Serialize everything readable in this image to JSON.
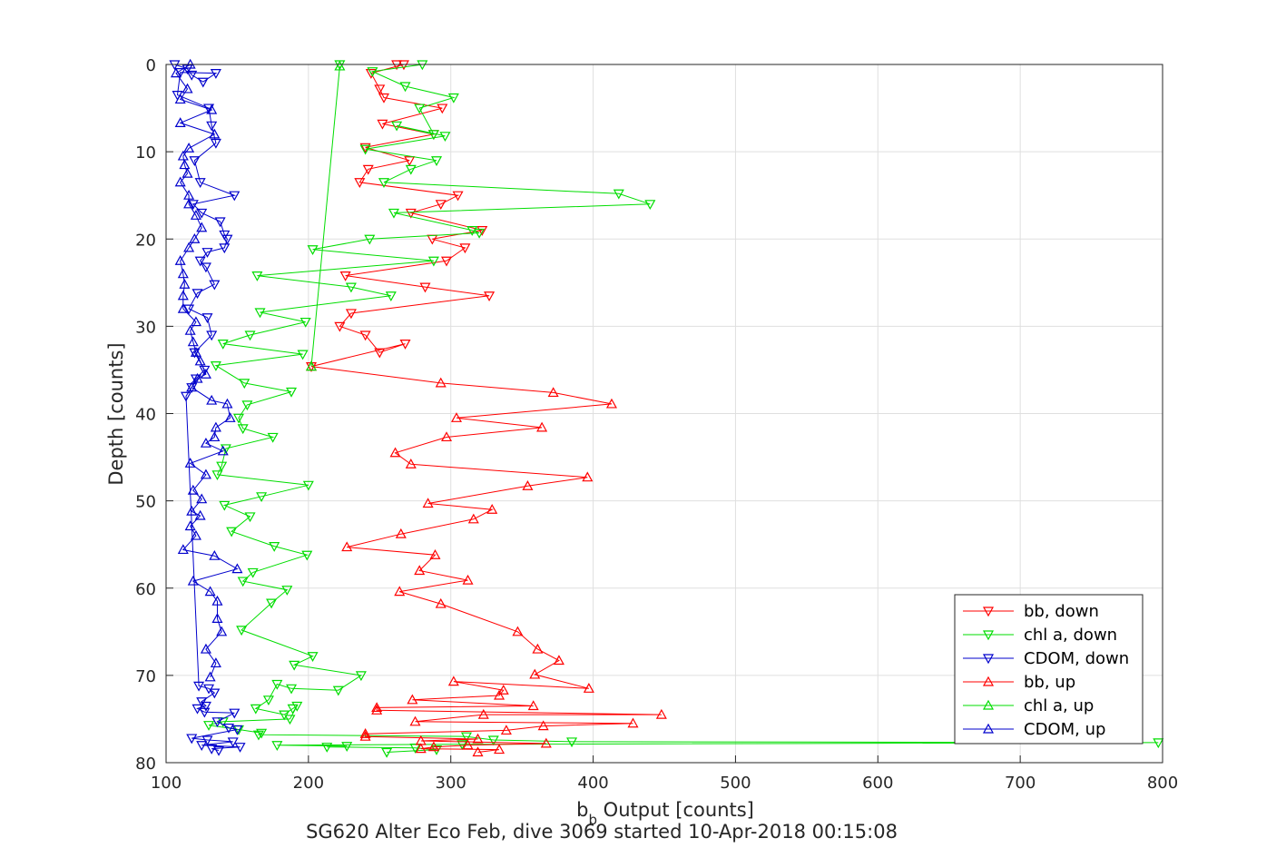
{
  "chart_data": {
    "type": "line",
    "xlabel_main": "b",
    "xlabel_sub": "b",
    "xlabel_rest": " Output [counts]",
    "ylabel": "Depth [counts]",
    "footer": "SG620 Alter Eco Feb, dive 3069 started 10-Apr-2018 00:15:08",
    "xlim": [
      100,
      800
    ],
    "ylim": [
      0,
      80
    ],
    "y_reversed": true,
    "grid": true,
    "legend_position": "bottom-right",
    "xticks": [
      "100",
      "200",
      "300",
      "400",
      "500",
      "600",
      "700",
      "800"
    ],
    "yticks": [
      "0",
      "10",
      "20",
      "30",
      "40",
      "50",
      "60",
      "70",
      "80"
    ],
    "series": [
      {
        "name": "bb, down",
        "color": "#ff0000",
        "marker": "triangle-down",
        "points": [
          [
            262,
            0
          ],
          [
            267,
            0
          ],
          [
            244,
            1
          ],
          [
            250,
            2.8
          ],
          [
            253,
            3.8
          ],
          [
            294,
            5
          ],
          [
            252,
            6.8
          ],
          [
            288,
            8
          ],
          [
            240,
            9.5
          ],
          [
            271,
            11
          ],
          [
            242,
            12
          ],
          [
            236,
            13.5
          ],
          [
            305,
            15
          ],
          [
            293,
            16
          ],
          [
            272,
            17
          ],
          [
            322,
            19
          ],
          [
            287,
            20
          ],
          [
            310,
            21
          ],
          [
            297,
            22.5
          ],
          [
            226,
            24.2
          ],
          [
            282,
            25.5
          ],
          [
            327,
            26.5
          ],
          [
            230,
            28.5
          ],
          [
            222,
            30
          ],
          [
            240,
            31
          ],
          [
            250,
            33
          ],
          [
            268,
            32
          ],
          [
            202,
            34.6
          ]
        ]
      },
      {
        "name": "chl a, down",
        "color": "#00dd00",
        "marker": "triangle-down",
        "points": [
          [
            222,
            0
          ],
          [
            280,
            0
          ],
          [
            245,
            0.8
          ],
          [
            268,
            2.5
          ],
          [
            302,
            3.8
          ],
          [
            278,
            5
          ],
          [
            288,
            8
          ],
          [
            262,
            7
          ],
          [
            296,
            8.2
          ],
          [
            240,
            9.7
          ],
          [
            290,
            11
          ],
          [
            272,
            12
          ],
          [
            253,
            13.5
          ],
          [
            418,
            14.8
          ],
          [
            440,
            16
          ],
          [
            260,
            17
          ],
          [
            315,
            19
          ],
          [
            320,
            19.3
          ],
          [
            243,
            20
          ],
          [
            203,
            21.2
          ],
          [
            288,
            22.5
          ],
          [
            164,
            24.2
          ],
          [
            230,
            25.5
          ],
          [
            258,
            26.5
          ],
          [
            166,
            28.4
          ],
          [
            198,
            29.5
          ],
          [
            159,
            31
          ],
          [
            140,
            32
          ],
          [
            196,
            33.2
          ],
          [
            135,
            34.5
          ],
          [
            155,
            36.5
          ],
          [
            188,
            37.5
          ],
          [
            157,
            39
          ],
          [
            151,
            40.5
          ],
          [
            154,
            41.7
          ],
          [
            175,
            42.7
          ],
          [
            142,
            44
          ],
          [
            139,
            46
          ],
          [
            136,
            47
          ],
          [
            200,
            48.2
          ],
          [
            167,
            49.5
          ],
          [
            141,
            50.5
          ],
          [
            159,
            51.8
          ],
          [
            146,
            53.5
          ],
          [
            176,
            55.2
          ],
          [
            199,
            56.2
          ],
          [
            161,
            58.2
          ],
          [
            154,
            59.2
          ],
          [
            185,
            60.2
          ],
          [
            174,
            61.7
          ],
          [
            153,
            64.8
          ],
          [
            203,
            67.8
          ],
          [
            190,
            68.8
          ],
          [
            237,
            70
          ],
          [
            221,
            71.7
          ],
          [
            188,
            71.5
          ],
          [
            178,
            71
          ],
          [
            172,
            72.8
          ],
          [
            163,
            73.8
          ],
          [
            183,
            74.5
          ],
          [
            189,
            73.8
          ],
          [
            192,
            73.5
          ],
          [
            187,
            75
          ],
          [
            140,
            75.3
          ],
          [
            130,
            75.7
          ],
          [
            151,
            76.2
          ],
          [
            167,
            76.6
          ],
          [
            165,
            76.8
          ],
          [
            311,
            77
          ],
          [
            330,
            77.4
          ],
          [
            385,
            77.6
          ],
          [
            797,
            77.7
          ],
          [
            308,
            77.9
          ],
          [
            178,
            78
          ],
          [
            227,
            78.1
          ],
          [
            213,
            78.2
          ],
          [
            275,
            78.3
          ],
          [
            290,
            78.5
          ],
          [
            255,
            78.8
          ]
        ]
      },
      {
        "name": "CDOM, down",
        "color": "#0000cc",
        "marker": "triangle-down",
        "points": [
          [
            106,
            0
          ],
          [
            115,
            0.5
          ],
          [
            118,
            1.2
          ],
          [
            126,
            2
          ],
          [
            135,
            1
          ],
          [
            110,
            0.9
          ],
          [
            108,
            3.5
          ],
          [
            130,
            5
          ],
          [
            132,
            7
          ],
          [
            135,
            9
          ],
          [
            120,
            11
          ],
          [
            124,
            13.5
          ],
          [
            148,
            15
          ],
          [
            119,
            16
          ],
          [
            125,
            17
          ],
          [
            138,
            18
          ],
          [
            141,
            19.5
          ],
          [
            143,
            20
          ],
          [
            141,
            21
          ],
          [
            129,
            21.5
          ],
          [
            124,
            22.5
          ],
          [
            128,
            23.2
          ],
          [
            134,
            25.2
          ],
          [
            122,
            26.2
          ],
          [
            116,
            28
          ],
          [
            129,
            29
          ],
          [
            132,
            31
          ],
          [
            120,
            33
          ],
          [
            127,
            35
          ],
          [
            121,
            36
          ],
          [
            118,
            37
          ],
          [
            114,
            38
          ],
          [
            123,
            71.2
          ],
          [
            130,
            71.5
          ],
          [
            134,
            72
          ],
          [
            125,
            73
          ],
          [
            128,
            73.5
          ],
          [
            122,
            73.8
          ],
          [
            127,
            74.2
          ],
          [
            148,
            74.3
          ],
          [
            136,
            75.3
          ],
          [
            144,
            76
          ],
          [
            150,
            76.2
          ],
          [
            118,
            77.2
          ],
          [
            129,
            77.4
          ],
          [
            147,
            77.6
          ],
          [
            125,
            78
          ],
          [
            152,
            78.2
          ],
          [
            132,
            78.4
          ],
          [
            137,
            78.6
          ]
        ]
      },
      {
        "name": "bb, up",
        "color": "#ff0000",
        "marker": "triangle-up",
        "points": [
          [
            202,
            34.6
          ],
          [
            293,
            36.5
          ],
          [
            372,
            37.6
          ],
          [
            413,
            38.9
          ],
          [
            304,
            40.5
          ],
          [
            364,
            41.6
          ],
          [
            297,
            42.7
          ],
          [
            261,
            44.5
          ],
          [
            272,
            45.8
          ],
          [
            396,
            47.3
          ],
          [
            354,
            48.3
          ],
          [
            284,
            50.3
          ],
          [
            329,
            51
          ],
          [
            316,
            52.1
          ],
          [
            265,
            53.8
          ],
          [
            227,
            55.3
          ],
          [
            289,
            56.2
          ],
          [
            278,
            58
          ],
          [
            312,
            59.1
          ],
          [
            264,
            60.4
          ],
          [
            293,
            61.8
          ],
          [
            347,
            65
          ],
          [
            361,
            67
          ],
          [
            376,
            68.3
          ],
          [
            359,
            69.9
          ],
          [
            397,
            71.5
          ],
          [
            302,
            70.7
          ],
          [
            337,
            71.7
          ],
          [
            334,
            72.3
          ],
          [
            273,
            72.8
          ],
          [
            358,
            73.5
          ],
          [
            248,
            73.7
          ],
          [
            248,
            74
          ],
          [
            448,
            74.5
          ],
          [
            323,
            74.5
          ],
          [
            275,
            75.3
          ],
          [
            428,
            75.5
          ],
          [
            365,
            75.8
          ],
          [
            339,
            76.3
          ],
          [
            240,
            76.7
          ],
          [
            240,
            77
          ],
          [
            319,
            77.3
          ],
          [
            279,
            77.5
          ],
          [
            367,
            77.8
          ],
          [
            312,
            78
          ],
          [
            288,
            78.2
          ],
          [
            279,
            78.4
          ],
          [
            334,
            78.5
          ],
          [
            319,
            78.8
          ]
        ]
      },
      {
        "name": "chl a, up",
        "color": "#00dd00",
        "marker": "triangle-up",
        "points": [
          [
            202,
            34.6
          ],
          [
            222,
            0.2
          ]
        ]
      },
      {
        "name": "CDOM, up",
        "color": "#0000cc",
        "marker": "triangle-up",
        "points": [
          [
            117,
            0
          ],
          [
            107,
            1
          ],
          [
            115,
            2.8
          ],
          [
            110,
            4
          ],
          [
            132,
            5.2
          ],
          [
            110,
            6.7
          ],
          [
            134,
            8
          ],
          [
            116,
            9.6
          ],
          [
            112,
            10.5
          ],
          [
            113,
            11.5
          ],
          [
            115,
            12.5
          ],
          [
            110,
            13.5
          ],
          [
            116,
            15
          ],
          [
            116,
            16
          ],
          [
            121,
            17.3
          ],
          [
            125,
            18.7
          ],
          [
            120,
            20
          ],
          [
            116,
            21
          ],
          [
            110,
            22.5
          ],
          [
            112,
            24
          ],
          [
            113,
            25.2
          ],
          [
            112,
            26.5
          ],
          [
            112,
            28
          ],
          [
            121,
            29.5
          ],
          [
            117,
            30.5
          ],
          [
            119,
            31.8
          ],
          [
            121,
            33
          ],
          [
            124,
            34
          ],
          [
            128,
            35.5
          ],
          [
            122,
            36
          ],
          [
            118,
            37
          ],
          [
            132,
            38.5
          ],
          [
            143,
            38.9
          ],
          [
            145,
            40.5
          ],
          [
            135,
            41.6
          ],
          [
            134,
            42.7
          ],
          [
            128,
            43.4
          ],
          [
            140,
            44.3
          ],
          [
            117,
            45.7
          ],
          [
            128,
            47
          ],
          [
            119,
            48.8
          ],
          [
            125,
            49.8
          ],
          [
            118,
            51.2
          ],
          [
            124,
            51.7
          ],
          [
            117,
            52.9
          ],
          [
            121,
            54
          ],
          [
            112,
            55.6
          ],
          [
            134,
            56.3
          ],
          [
            150,
            57.8
          ],
          [
            119,
            59.2
          ],
          [
            131,
            60.4
          ],
          [
            136,
            61.5
          ],
          [
            136,
            63.5
          ],
          [
            139,
            65
          ],
          [
            128,
            67
          ],
          [
            135,
            68.6
          ],
          [
            131,
            70.2
          ]
        ]
      }
    ]
  }
}
